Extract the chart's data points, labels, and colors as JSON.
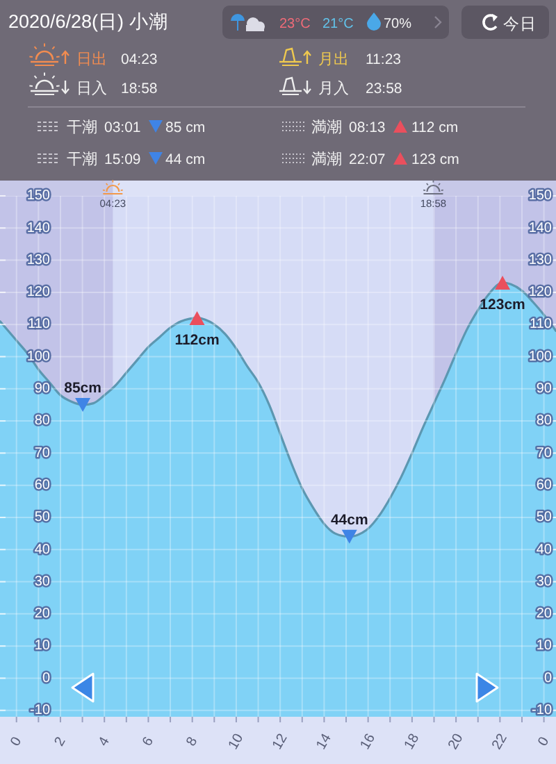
{
  "chart_data": [
    {
      "type": "other",
      "title": "2020/6/28(日) 小潮",
      "annotations": [
        "23°C",
        "21°C",
        "70%",
        "今日",
        "日出",
        "04:23",
        "月出",
        "11:23",
        "日入",
        "18:58",
        "月入",
        "23:58",
        "干潮",
        "03:01",
        "85 cm",
        "満潮",
        "08:13",
        "112 cm",
        "干潮",
        "15:09",
        "44 cm",
        "満潮",
        "22:07",
        "123 cm"
      ]
    },
    {
      "type": "area",
      "x": [
        "2020-06-27T23:15",
        "2020-06-27T23:45",
        "2020-06-28T00:00",
        "2020-06-28T00:30",
        "2020-06-28T01:00",
        "2020-06-28T01:30",
        "2020-06-28T02:00",
        "2020-06-28T02:30",
        "2020-06-28T03:01",
        "2020-06-28T03:30",
        "2020-06-28T04:00",
        "2020-06-28T04:30",
        "2020-06-28T05:00",
        "2020-06-28T05:30",
        "2020-06-28T06:00",
        "2020-06-28T06:30",
        "2020-06-28T07:00",
        "2020-06-28T07:30",
        "2020-06-28T08:13",
        "2020-06-28T09:00",
        "2020-06-28T09:30",
        "2020-06-28T10:00",
        "2020-06-28T10:30",
        "2020-06-28T11:00",
        "2020-06-28T11:30",
        "2020-06-28T12:00",
        "2020-06-28T12:30",
        "2020-06-28T13:00",
        "2020-06-28T13:30",
        "2020-06-28T14:00",
        "2020-06-28T14:30",
        "2020-06-28T15:09",
        "2020-06-28T15:30",
        "2020-06-28T16:00",
        "2020-06-28T16:30",
        "2020-06-28T17:00",
        "2020-06-28T17:30",
        "2020-06-28T18:00",
        "2020-06-28T18:30",
        "2020-06-28T19:00",
        "2020-06-28T19:30",
        "2020-06-28T20:00",
        "2020-06-28T20:30",
        "2020-06-28T21:00",
        "2020-06-28T21:30",
        "2020-06-28T22:07",
        "2020-06-28T22:30",
        "2020-06-28T23:00",
        "2020-06-28T23:30",
        "2020-06-29T00:00",
        "2020-06-29T00:33"
      ],
      "series": [
        {
          "type": "area",
          "color": "#80d2f6",
          "values": [
            111,
            107,
            105,
            101,
            96,
            92,
            88,
            86,
            85,
            85.5,
            88,
            91,
            95,
            99,
            103,
            106,
            109,
            111,
            112,
            110,
            107,
            102.5,
            97,
            92,
            85,
            76,
            67,
            59,
            53,
            48,
            45,
            44,
            44.5,
            46.5,
            50.5,
            56,
            62.5,
            70,
            78,
            85.5,
            93,
            101,
            108.5,
            114.5,
            119.5,
            123,
            122.5,
            120.5,
            117,
            113,
            108
          ]
        },
        {
          "type": "scatter",
          "color": "#3f84e6",
          "marker": "triangle",
          "x": [
            "2020-06-28T03:01",
            "2020-06-28T15:09"
          ],
          "values": [
            85,
            44
          ],
          "value_labels": [
            "85cm",
            "44cm"
          ]
        },
        {
          "type": "scatter",
          "color": "#ea4f5d",
          "marker": "triangle",
          "x": [
            "2020-06-28T08:13",
            "2020-06-28T22:07"
          ],
          "values": [
            112,
            123
          ],
          "value_labels": [
            "112cm",
            "123cm"
          ]
        }
      ],
      "xlim": [
        "2020-06-27T23:15",
        "2020-06-29T00:33"
      ],
      "xticks": [
        {
          "value": "2020-06-28T00:00",
          "label": "0"
        },
        {
          "value": "2020-06-28T01:00",
          "label": null
        },
        {
          "value": "2020-06-28T02:00",
          "label": "2"
        },
        {
          "value": "2020-06-28T03:00",
          "label": null
        },
        {
          "value": "2020-06-28T04:00",
          "label": "4"
        },
        {
          "value": "2020-06-28T05:00",
          "label": null
        },
        {
          "value": "2020-06-28T06:00",
          "label": "6"
        },
        {
          "value": "2020-06-28T07:00",
          "label": null
        },
        {
          "value": "2020-06-28T08:00",
          "label": "8"
        },
        {
          "value": "2020-06-28T09:00",
          "label": null
        },
        {
          "value": "2020-06-28T10:00",
          "label": "10"
        },
        {
          "value": "2020-06-28T11:00",
          "label": null
        },
        {
          "value": "2020-06-28T12:00",
          "label": "12"
        },
        {
          "value": "2020-06-28T13:00",
          "label": null
        },
        {
          "value": "2020-06-28T14:00",
          "label": "14"
        },
        {
          "value": "2020-06-28T15:00",
          "label": null
        },
        {
          "value": "2020-06-28T16:00",
          "label": "16"
        },
        {
          "value": "2020-06-28T17:00",
          "label": null
        },
        {
          "value": "2020-06-28T18:00",
          "label": "18"
        },
        {
          "value": "2020-06-28T19:00",
          "label": null
        },
        {
          "value": "2020-06-28T20:00",
          "label": "20"
        },
        {
          "value": "2020-06-28T21:00",
          "label": null
        },
        {
          "value": "2020-06-28T22:00",
          "label": "22"
        },
        {
          "value": "2020-06-28T23:00",
          "label": null
        },
        {
          "value": "2020-06-29T00:00",
          "label": "0"
        }
      ],
      "ylim": [
        -12,
        150
      ],
      "yticks": [
        -10,
        0,
        10,
        20,
        30,
        40,
        50,
        60,
        70,
        80,
        90,
        100,
        110,
        120,
        130,
        140,
        150
      ],
      "y2lim": [
        -12,
        150
      ],
      "y2ticks": [
        -10,
        0,
        10,
        20,
        30,
        40,
        50,
        60,
        70,
        80,
        90,
        100,
        110,
        120,
        130,
        140,
        150
      ],
      "grid": true,
      "bands": [
        {
          "axis": "x",
          "from": "2020-06-27T23:15",
          "to": "2020-06-28T04:23",
          "label": "04:23",
          "color": "#7a6fb8"
        },
        {
          "axis": "x",
          "from": "2020-06-28T18:58",
          "to": "2020-06-29T00:33",
          "label": "18:58",
          "color": "#7a6fb8"
        }
      ]
    }
  ]
}
